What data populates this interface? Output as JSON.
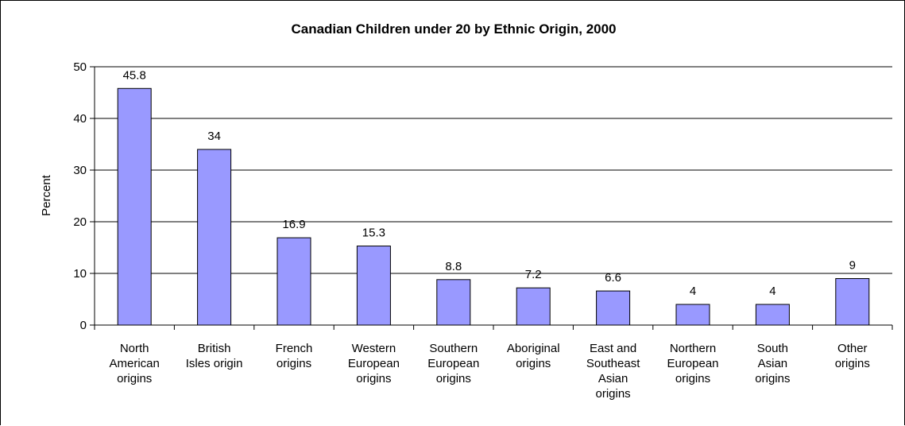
{
  "chart_data": {
    "type": "bar",
    "title": "Canadian Children under 20 by Ethnic Origin, 2000",
    "xlabel": "",
    "ylabel": "Percent",
    "ylim": [
      0,
      50
    ],
    "yticks": [
      0,
      10,
      20,
      30,
      40,
      50
    ],
    "grid": true,
    "legend": "none",
    "bar_color": "#9999ff",
    "categories": [
      "North American origins",
      "British Isles origin",
      "French origins",
      "Western European origins",
      "Southern European origins",
      "Aboriginal origins",
      "East and Southeast Asian origins",
      "Northern European origins",
      "South Asian origins",
      "Other origins"
    ],
    "category_lines": [
      [
        "North",
        "American",
        "origins"
      ],
      [
        "British",
        "Isles origin"
      ],
      [
        "French",
        "origins"
      ],
      [
        "Western",
        "European",
        "origins"
      ],
      [
        "Southern",
        "European",
        "origins"
      ],
      [
        "Aboriginal",
        "origins"
      ],
      [
        "East and",
        "Southeast",
        "Asian",
        "origins"
      ],
      [
        "Northern",
        "European",
        "origins"
      ],
      [
        "South",
        "Asian",
        "origins"
      ],
      [
        "Other",
        "origins"
      ]
    ],
    "values": [
      45.8,
      34,
      16.9,
      15.3,
      8.8,
      7.2,
      6.6,
      4,
      4,
      9
    ],
    "data_labels": [
      "45.8",
      "34",
      "16.9",
      "15.3",
      "8.8",
      "7.2",
      "6.6",
      "4",
      "4",
      "9"
    ]
  }
}
